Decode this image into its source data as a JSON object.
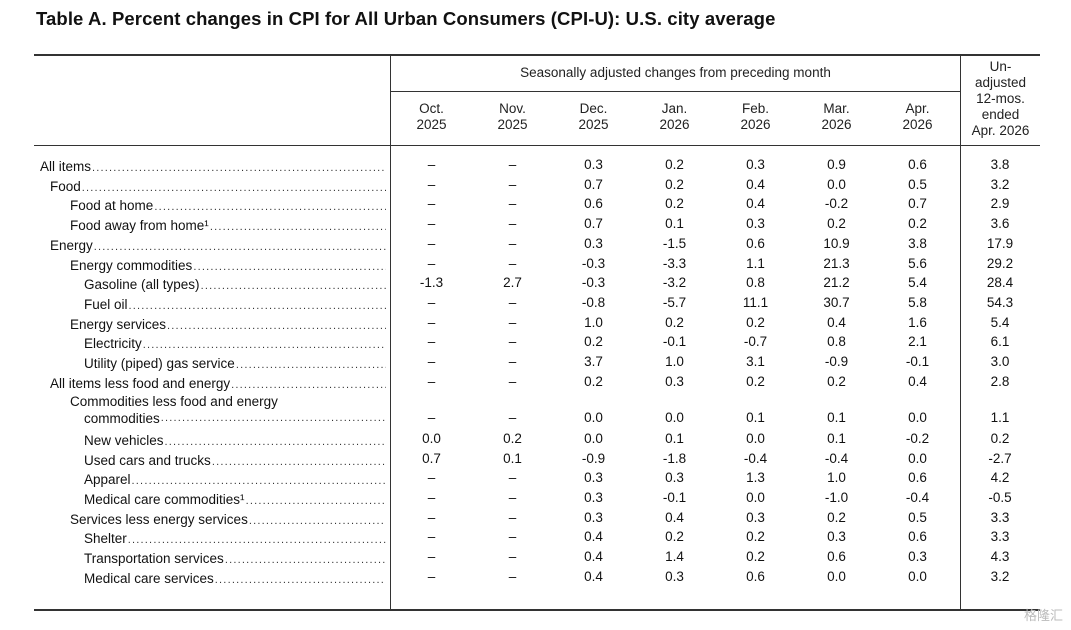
{
  "title": "Table A. Percent changes in CPI for All Urban Consumers (CPI-U): U.S. city average",
  "header": {
    "group_label": "Seasonally adjusted changes from preceding month",
    "months": [
      {
        "line1": "Oct.",
        "line2": "2025"
      },
      {
        "line1": "Nov.",
        "line2": "2025"
      },
      {
        "line1": "Dec.",
        "line2": "2025"
      },
      {
        "line1": "Jan.",
        "line2": "2026"
      },
      {
        "line1": "Feb.",
        "line2": "2026"
      },
      {
        "line1": "Mar.",
        "line2": "2026"
      },
      {
        "line1": "Apr.",
        "line2": "2026"
      }
    ],
    "unadjusted": [
      "Un-",
      "adjusted",
      "12-mos.",
      "ended",
      "Apr. 2026"
    ]
  },
  "rows": [
    {
      "label": "All items",
      "indent": 0,
      "values": [
        "–",
        "–",
        "0.3",
        "0.2",
        "0.3",
        "0.9",
        "0.6",
        "3.8"
      ]
    },
    {
      "label": "Food",
      "indent": 1,
      "values": [
        "–",
        "–",
        "0.7",
        "0.2",
        "0.4",
        "0.0",
        "0.5",
        "3.2"
      ]
    },
    {
      "label": "Food at home",
      "indent": 2,
      "values": [
        "–",
        "–",
        "0.6",
        "0.2",
        "0.4",
        "-0.2",
        "0.7",
        "2.9"
      ]
    },
    {
      "label": "Food away from home¹",
      "indent": 2,
      "values": [
        "–",
        "–",
        "0.7",
        "0.1",
        "0.3",
        "0.2",
        "0.2",
        "3.6"
      ]
    },
    {
      "label": "Energy",
      "indent": 1,
      "values": [
        "–",
        "–",
        "0.3",
        "-1.5",
        "0.6",
        "10.9",
        "3.8",
        "17.9"
      ]
    },
    {
      "label": "Energy commodities",
      "indent": 2,
      "values": [
        "–",
        "–",
        "-0.3",
        "-3.3",
        "1.1",
        "21.3",
        "5.6",
        "29.2"
      ]
    },
    {
      "label": "Gasoline (all types)",
      "indent": 3,
      "values": [
        "-1.3",
        "2.7",
        "-0.3",
        "-3.2",
        "0.8",
        "21.2",
        "5.4",
        "28.4"
      ]
    },
    {
      "label": "Fuel oil",
      "indent": 3,
      "values": [
        "–",
        "–",
        "-0.8",
        "-5.7",
        "11.1",
        "30.7",
        "5.8",
        "54.3"
      ]
    },
    {
      "label": "Energy services",
      "indent": 2,
      "values": [
        "–",
        "–",
        "1.0",
        "0.2",
        "0.2",
        "0.4",
        "1.6",
        "5.4"
      ]
    },
    {
      "label": "Electricity",
      "indent": 3,
      "values": [
        "–",
        "–",
        "0.2",
        "-0.1",
        "-0.7",
        "0.8",
        "2.1",
        "6.1"
      ]
    },
    {
      "label": "Utility (piped) gas service",
      "indent": 3,
      "values": [
        "–",
        "–",
        "3.7",
        "1.0",
        "3.1",
        "-0.9",
        "-0.1",
        "3.0"
      ]
    },
    {
      "label": "All items less food and energy",
      "indent": 1,
      "values": [
        "–",
        "–",
        "0.2",
        "0.3",
        "0.2",
        "0.2",
        "0.4",
        "2.8"
      ]
    },
    {
      "label": "Commodities less food and energy",
      "label2": "commodities",
      "indent": 2,
      "values": [
        "–",
        "–",
        "0.0",
        "0.0",
        "0.1",
        "0.1",
        "0.0",
        "1.1"
      ]
    },
    {
      "label": "New vehicles",
      "indent": 3,
      "values": [
        "0.0",
        "0.2",
        "0.0",
        "0.1",
        "0.0",
        "0.1",
        "-0.2",
        "0.2"
      ]
    },
    {
      "label": "Used cars and trucks",
      "indent": 3,
      "values": [
        "0.7",
        "0.1",
        "-0.9",
        "-1.8",
        "-0.4",
        "-0.4",
        "0.0",
        "-2.7"
      ]
    },
    {
      "label": "Apparel",
      "indent": 3,
      "values": [
        "–",
        "–",
        "0.3",
        "0.3",
        "1.3",
        "1.0",
        "0.6",
        "4.2"
      ]
    },
    {
      "label": "Medical care commodities¹",
      "indent": 3,
      "values": [
        "–",
        "–",
        "0.3",
        "-0.1",
        "0.0",
        "-1.0",
        "-0.4",
        "-0.5"
      ]
    },
    {
      "label": "Services less energy services",
      "indent": 2,
      "values": [
        "–",
        "–",
        "0.3",
        "0.4",
        "0.3",
        "0.2",
        "0.5",
        "3.3"
      ]
    },
    {
      "label": "Shelter",
      "indent": 3,
      "values": [
        "–",
        "–",
        "0.4",
        "0.2",
        "0.2",
        "0.3",
        "0.6",
        "3.3"
      ]
    },
    {
      "label": "Transportation services",
      "indent": 3,
      "values": [
        "–",
        "–",
        "0.4",
        "1.4",
        "0.2",
        "0.6",
        "0.3",
        "4.3"
      ]
    },
    {
      "label": "Medical care services",
      "indent": 3,
      "values": [
        "–",
        "–",
        "0.4",
        "0.3",
        "0.6",
        "0.0",
        "0.0",
        "3.2"
      ]
    }
  ],
  "watermark": "格隆汇"
}
